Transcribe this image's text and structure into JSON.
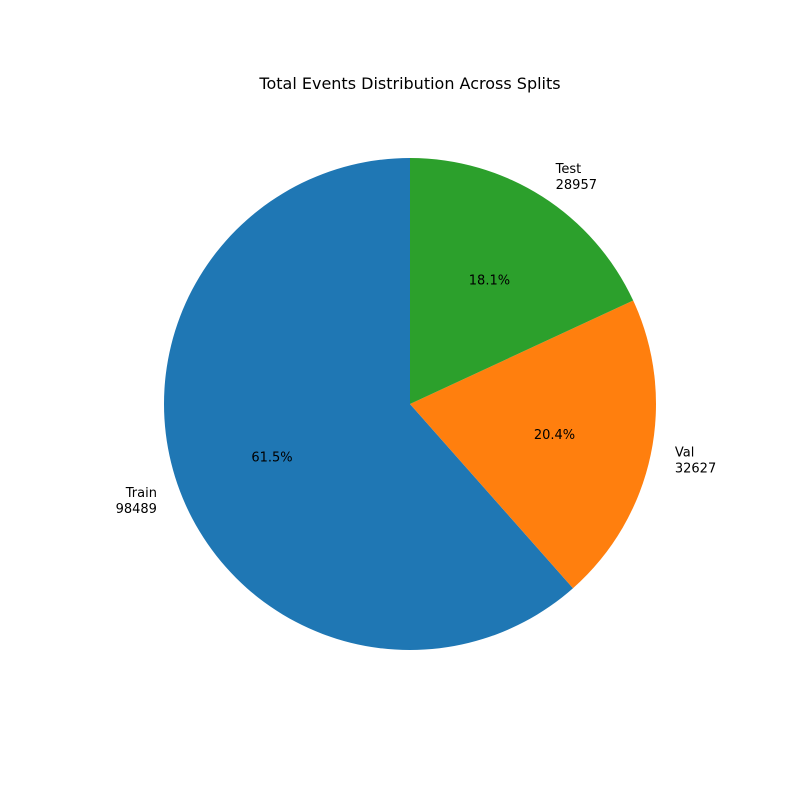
{
  "chart_data": {
    "type": "pie",
    "title": "Total Events Distribution Across Splits",
    "start_angle_deg": 90,
    "direction": "counterclockwise",
    "slices": [
      {
        "label": "Train",
        "value": 98489,
        "pct_label": "61.5%",
        "color": "#1f77b4"
      },
      {
        "label": "Val",
        "value": 32627,
        "pct_label": "20.4%",
        "color": "#ff7f0e"
      },
      {
        "label": "Test",
        "value": 28957,
        "pct_label": "18.1%",
        "color": "#2ca02c"
      }
    ]
  }
}
